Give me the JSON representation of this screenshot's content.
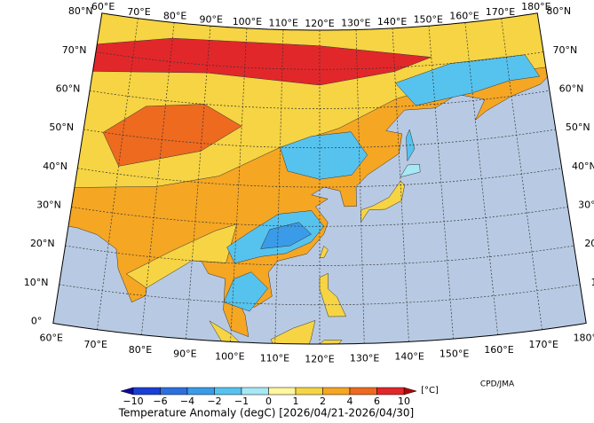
{
  "map": {
    "lon_labels": [
      "60°E",
      "70°E",
      "80°E",
      "90°E",
      "100°E",
      "110°E",
      "120°E",
      "130°E",
      "140°E",
      "150°E",
      "160°E",
      "170°E",
      "180°E"
    ],
    "lat_labels": [
      "0°",
      "10°N",
      "20°N",
      "30°N",
      "40°N",
      "50°N",
      "60°N",
      "70°N",
      "80°N"
    ]
  },
  "colorbar": {
    "labels": [
      "−10",
      "−6",
      "−4",
      "−2",
      "−1",
      "0",
      "1",
      "2",
      "4",
      "6",
      "10"
    ],
    "colors": [
      "#1a3fd6",
      "#2e6fe0",
      "#3a9be8",
      "#56c3ee",
      "#a6e8f6",
      "#fff6a0",
      "#f6d443",
      "#f5a623",
      "#ee6a1f",
      "#e2272a"
    ],
    "low_color": "#0a0aa0",
    "high_color": "#b80000",
    "unit": "[°C]"
  },
  "title": "Temperature Anomaly (degC) [2026/04/21-2026/04/30]",
  "credit": "CPD/JMA"
}
